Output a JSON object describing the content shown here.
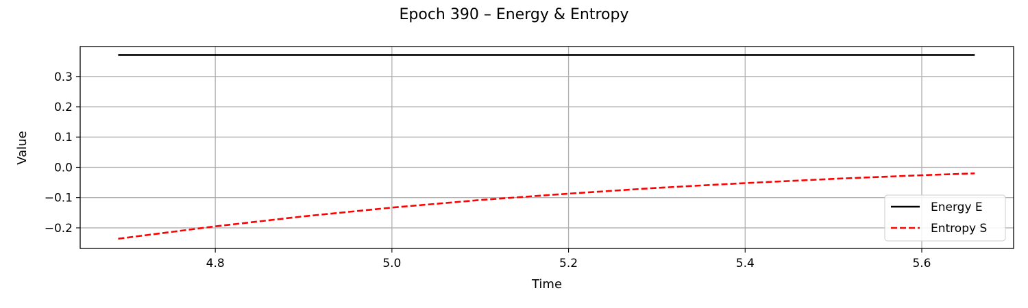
{
  "chart_data": {
    "type": "line",
    "title": "Epoch 390 – Energy & Entropy",
    "xlabel": "Time",
    "ylabel": "Value",
    "xlim": [
      4.647,
      5.704
    ],
    "ylim": [
      -0.268,
      0.399
    ],
    "xticks": [
      4.8,
      5.0,
      5.2,
      5.4,
      5.6
    ],
    "xtick_labels": [
      "4.8",
      "5.0",
      "5.2",
      "5.4",
      "5.6"
    ],
    "yticks": [
      -0.2,
      -0.1,
      0.0,
      0.1,
      0.2,
      0.3
    ],
    "ytick_labels": [
      "−0.2",
      "−0.1",
      "0.0",
      "0.1",
      "0.2",
      "0.3"
    ],
    "grid": true,
    "legend_position": "lower-right",
    "series": [
      {
        "name": "Energy E",
        "color": "#000000",
        "style": "solid",
        "x": [
          4.69,
          4.8,
          5.0,
          5.2,
          5.4,
          5.6,
          5.66
        ],
        "y": [
          0.371,
          0.371,
          0.371,
          0.371,
          0.371,
          0.371,
          0.371
        ]
      },
      {
        "name": "Entropy S",
        "color": "#ff0000",
        "style": "dashed",
        "x": [
          4.69,
          4.8,
          4.9,
          5.0,
          5.1,
          5.2,
          5.3,
          5.4,
          5.5,
          5.6,
          5.66
        ],
        "y": [
          -0.236,
          -0.195,
          -0.162,
          -0.133,
          -0.108,
          -0.087,
          -0.068,
          -0.052,
          -0.038,
          -0.026,
          -0.02
        ]
      }
    ]
  }
}
